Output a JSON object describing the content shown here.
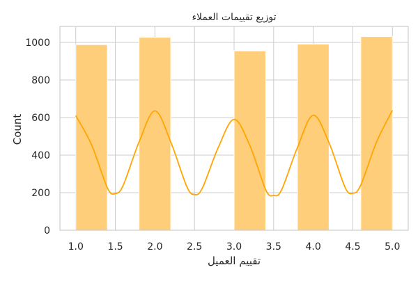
{
  "chart_data": {
    "type": "bar",
    "title": "توزيع تقييمات العملاء",
    "xlabel": "تقييم العميل",
    "ylabel": "Count",
    "xlim": [
      0.8,
      5.2
    ],
    "ylim": [
      0,
      1085
    ],
    "x_ticks": [
      "1.0",
      "1.5",
      "2.0",
      "2.5",
      "3.0",
      "3.5",
      "4.0",
      "4.5",
      "5.0"
    ],
    "y_ticks": [
      "0",
      "200",
      "400",
      "600",
      "800",
      "1000"
    ],
    "grid": true,
    "colors": {
      "bar": "#ffce7a",
      "line": "#ffa500",
      "grid": "#cccccc"
    },
    "bins": [
      {
        "x0": 1.0,
        "x1": 1.4,
        "count": 988
      },
      {
        "x0": 1.4,
        "x1": 1.8,
        "count": 0
      },
      {
        "x0": 1.8,
        "x1": 2.2,
        "count": 1027
      },
      {
        "x0": 2.2,
        "x1": 2.6,
        "count": 0
      },
      {
        "x0": 2.6,
        "x1": 3.0,
        "count": 0
      },
      {
        "x0": 3.0,
        "x1": 3.4,
        "count": 955
      },
      {
        "x0": 3.4,
        "x1": 3.8,
        "count": 0
      },
      {
        "x0": 3.8,
        "x1": 4.2,
        "count": 991
      },
      {
        "x0": 4.2,
        "x1": 4.6,
        "count": 0
      },
      {
        "x0": 4.6,
        "x1": 5.0,
        "count": 1031
      }
    ],
    "kde": {
      "x": [
        1.0,
        1.2,
        1.4,
        1.5,
        1.6,
        1.8,
        2.0,
        2.2,
        2.4,
        2.5,
        2.6,
        2.8,
        3.0,
        3.2,
        3.4,
        3.5,
        3.6,
        3.8,
        4.0,
        4.2,
        4.4,
        4.5,
        4.6,
        4.8,
        5.0
      ],
      "y": [
        610,
        455,
        225,
        195,
        240,
        470,
        635,
        470,
        235,
        190,
        225,
        440,
        590,
        450,
        215,
        185,
        215,
        440,
        612,
        465,
        230,
        197,
        240,
        470,
        638
      ]
    }
  }
}
